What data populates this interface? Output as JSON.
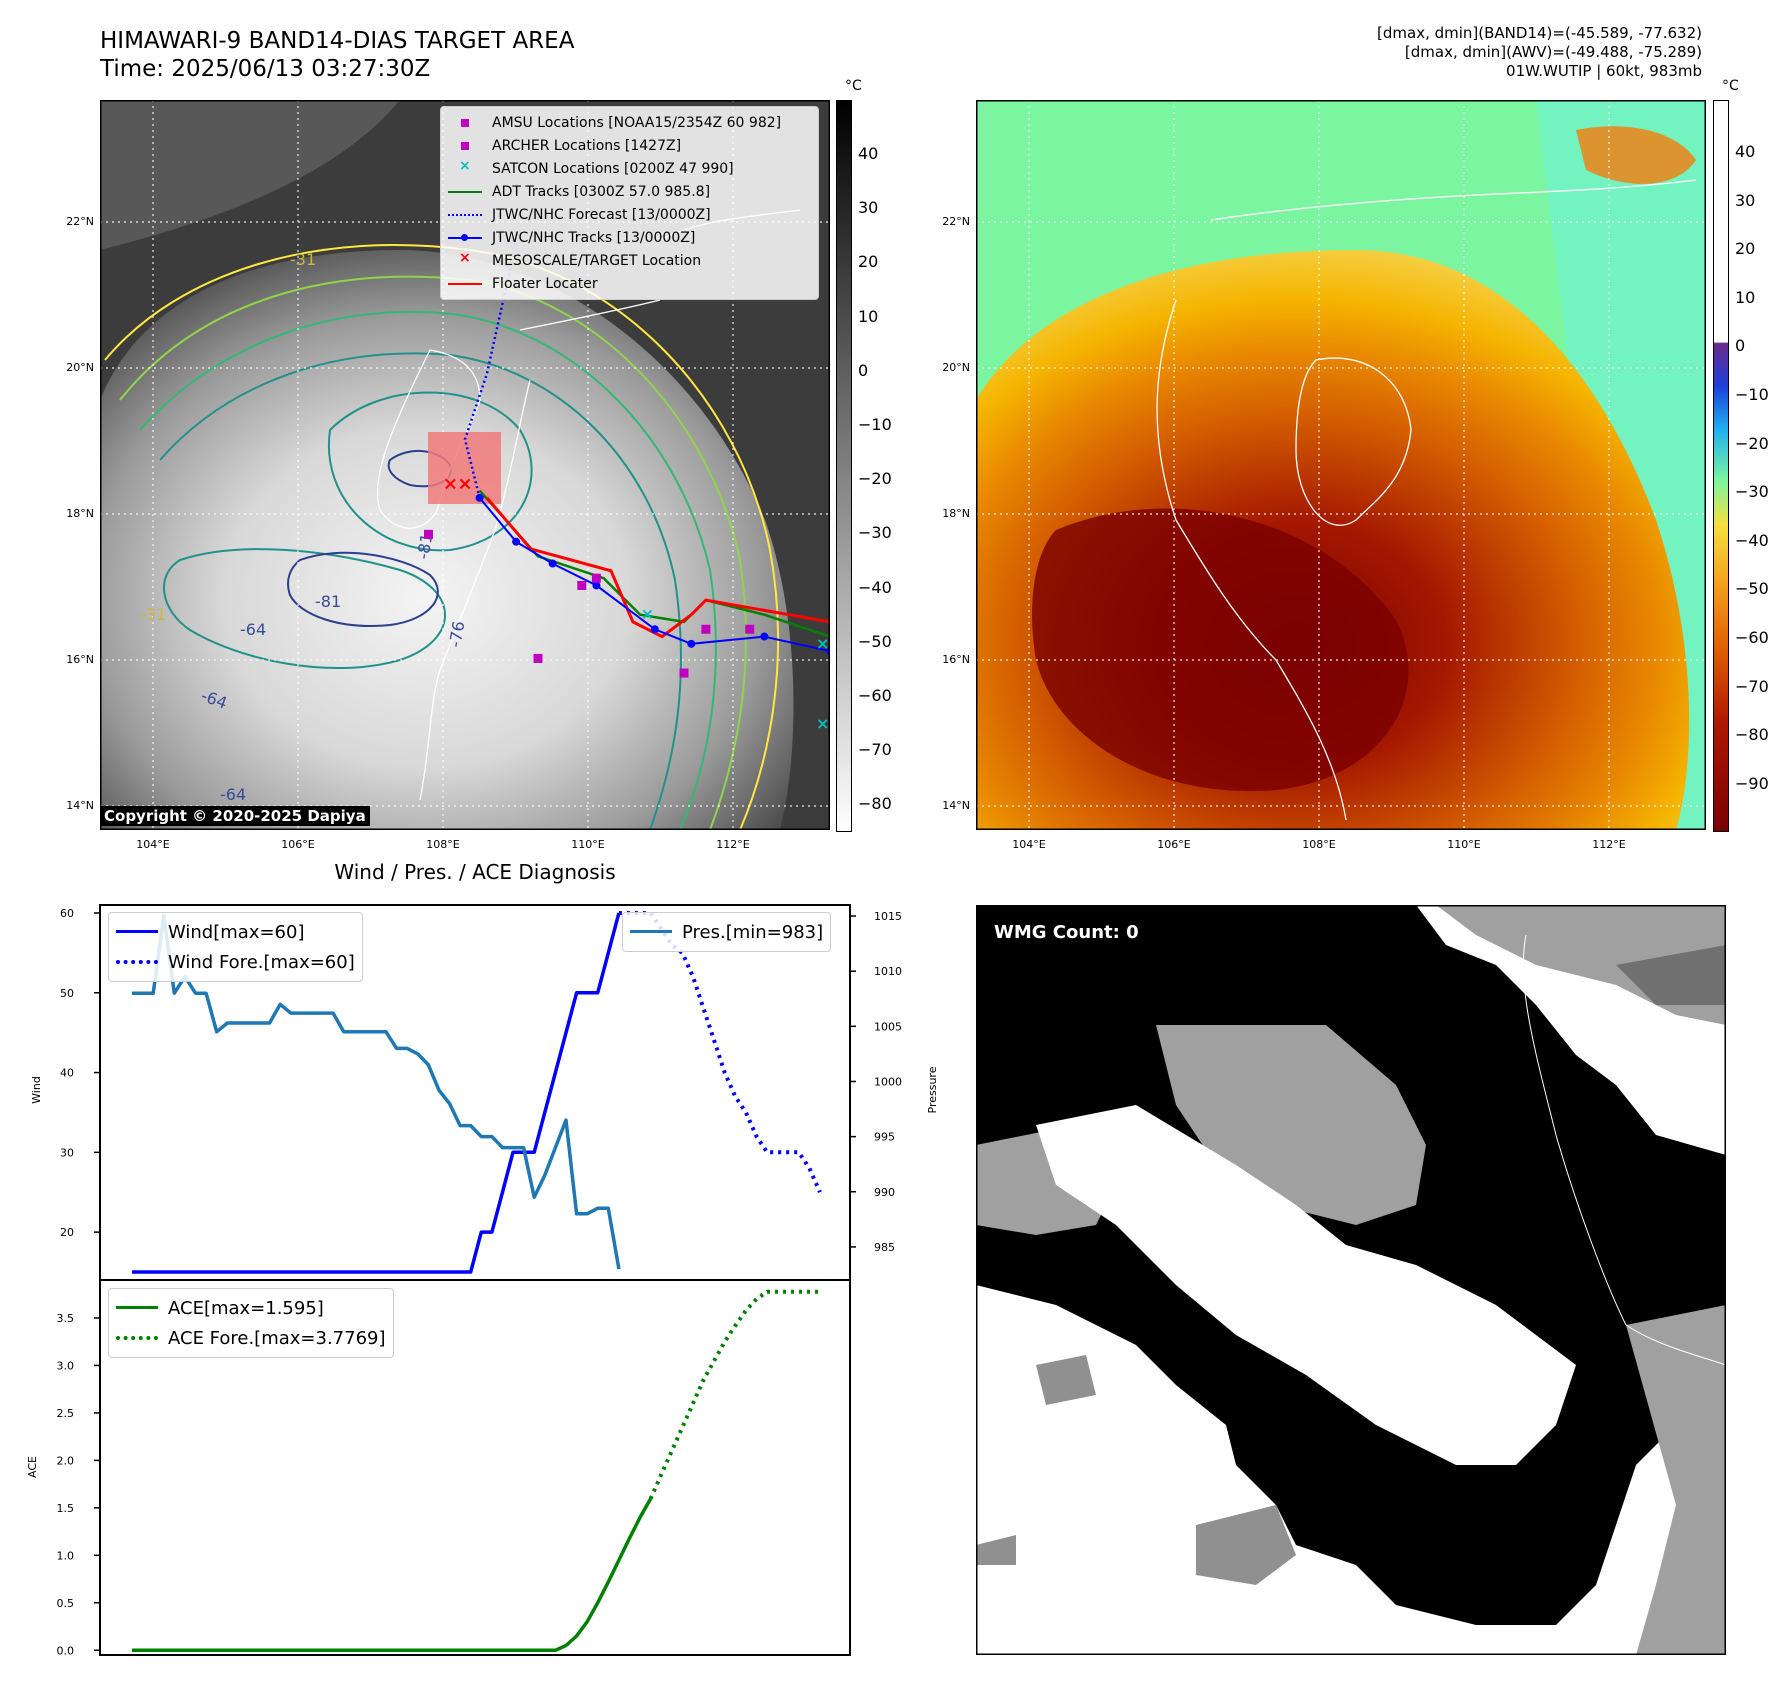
{
  "header": {
    "title_line1": "HIMAWARI-9 BAND14-DIAS TARGET AREA",
    "title_line2": "Time: 2025/06/13 03:27:30Z",
    "info_line1": "[dmax, dmin](BAND14)=(-45.589, -77.632)",
    "info_line2": "[dmax, dmin](AWV)=(-49.488, -75.289)",
    "info_line3": "01W.WUTIP | 60kt, 983mb"
  },
  "map": {
    "lat_ticks": [
      "22°N",
      "20°N",
      "18°N",
      "16°N",
      "14°N"
    ],
    "lon_ticks": [
      "104°E",
      "106°E",
      "108°E",
      "110°E",
      "112°E"
    ],
    "copyright": "Copyright © 2020-2025 Dapiya",
    "contour_labels": [
      "-81",
      "-64",
      "-81",
      "-76",
      "-64",
      "-31",
      "-31",
      "-64"
    ],
    "legend": {
      "amsu": "AMSU Locations [NOAA15/2354Z 60 982]",
      "archer": "ARCHER Locations [1427Z]",
      "satcon": "SATCON Locations [0200Z 47 990]",
      "adt": "ADT Tracks [0300Z 57.0 985.8]",
      "forecast": "JTWC/NHC Forecast [13/0000Z]",
      "tracks": "JTWC/NHC Tracks [13/0000Z]",
      "target": "MESOSCALE/TARGET Location",
      "floater": "Floater Locater"
    },
    "colors": {
      "amsu": "#bf00bf",
      "archer": "#c000c0",
      "satcon": "#00bfbf",
      "adt": "#008000",
      "forecast": "#0000ff",
      "tracks": "#0000ff",
      "target": "#ff0000",
      "floater": "#ff0000"
    },
    "tracks_points": [
      [
        18.3,
        108.5
      ],
      [
        17.7,
        109.0
      ],
      [
        17.4,
        109.5
      ],
      [
        17.1,
        110.1
      ],
      [
        16.5,
        110.9
      ],
      [
        16.3,
        111.4
      ],
      [
        16.4,
        112.4
      ],
      [
        16.2,
        113.3
      ]
    ],
    "forecast_points": [
      [
        18.3,
        108.5
      ],
      [
        19.1,
        108.3
      ],
      [
        20.0,
        108.6
      ],
      [
        20.9,
        108.8
      ],
      [
        21.8,
        109.0
      ]
    ],
    "adt_points": [
      [
        18.4,
        108.5
      ],
      [
        17.5,
        109.3
      ],
      [
        17.2,
        110.2
      ],
      [
        16.7,
        110.7
      ],
      [
        16.6,
        111.3
      ],
      [
        16.9,
        111.6
      ],
      [
        16.7,
        112.4
      ],
      [
        16.4,
        113.3
      ]
    ],
    "floater_points": [
      [
        18.3,
        108.6
      ],
      [
        17.6,
        109.2
      ],
      [
        17.3,
        110.3
      ],
      [
        16.6,
        110.6
      ],
      [
        16.4,
        111.0
      ],
      [
        16.7,
        111.4
      ],
      [
        16.9,
        111.6
      ],
      [
        16.6,
        113.3
      ]
    ],
    "amsu_points": [
      [
        17.8,
        107.8
      ],
      [
        17.2,
        110.1
      ],
      [
        16.1,
        109.3
      ],
      [
        16.5,
        111.6
      ],
      [
        16.5,
        112.2
      ],
      [
        15.9,
        111.3
      ],
      [
        17.1,
        109.9
      ]
    ],
    "target_points": [
      [
        18.5,
        108.1
      ],
      [
        18.5,
        108.3
      ]
    ],
    "satcon_points": [
      [
        16.7,
        110.8
      ],
      [
        16.3,
        113.2
      ],
      [
        15.2,
        113.2
      ]
    ]
  },
  "colorbar_left": {
    "unit": "°C",
    "ticks": [
      "40",
      "30",
      "20",
      "10",
      "0",
      "−10",
      "−20",
      "−30",
      "−40",
      "−50",
      "−60",
      "−70",
      "−80"
    ]
  },
  "colorbar_right": {
    "unit": "°C",
    "ticks": [
      "40",
      "30",
      "20",
      "10",
      "0",
      "−10",
      "−20",
      "−30",
      "−40",
      "−50",
      "−60",
      "−70",
      "−80",
      "−90"
    ]
  },
  "diag": {
    "title": "Wind / Pres. / ACE Diagnosis",
    "wind_ylabel": "Wind",
    "pres_ylabel": "Pressure",
    "ace_ylabel": "ACE",
    "wind_ticks": [
      "60",
      "50",
      "40",
      "30",
      "20"
    ],
    "pres_ticks": [
      "1015",
      "1010",
      "1005",
      "1000",
      "995",
      "990",
      "985"
    ],
    "ace_ticks": [
      "3.5",
      "3.0",
      "2.5",
      "2.0",
      "1.5",
      "1.0",
      "0.5",
      "0.0"
    ],
    "legend": {
      "wind": "Wind[max=60]",
      "wind_fore": "Wind Fore.[max=60]",
      "pres": "Pres.[min=983]",
      "ace": "ACE[max=1.595]",
      "ace_fore": "ACE Fore.[max=3.7769]"
    },
    "colors": {
      "wind": "#0000ff",
      "pres": "#1f77b4",
      "ace": "#008000"
    }
  },
  "wmg": {
    "label": "WMG Count: 0"
  },
  "chart_data": {
    "type": "line",
    "title": "Wind / Pres. / ACE Diagnosis",
    "series": [
      {
        "name": "Wind[max=60]",
        "axis": "Wind",
        "x": [
          0,
          1,
          2,
          3,
          4,
          5,
          6,
          7,
          8,
          9,
          10,
          11,
          12,
          13,
          14,
          15,
          16,
          17,
          18,
          19,
          20,
          21,
          22,
          23,
          24,
          25,
          26,
          27,
          28,
          29,
          30,
          31,
          32,
          33,
          34,
          35,
          36,
          37,
          38,
          39,
          40,
          41,
          42,
          43,
          44,
          45,
          46,
          47,
          48,
          49,
          50
        ],
        "values": [
          15,
          15,
          15,
          15,
          15,
          15,
          15,
          15,
          15,
          15,
          15,
          15,
          15,
          15,
          15,
          15,
          15,
          15,
          15,
          15,
          15,
          15,
          15,
          15,
          15,
          15,
          15,
          15,
          15,
          15,
          15,
          15,
          15,
          20,
          20,
          25,
          30,
          30,
          30,
          35,
          40,
          45,
          50,
          50,
          50,
          55,
          60,
          null,
          null,
          null,
          null
        ]
      },
      {
        "name": "Wind Fore.[max=60]",
        "axis": "Wind",
        "x": [
          46,
          47,
          48,
          49,
          50,
          51,
          52,
          53,
          54,
          55,
          56,
          57,
          58,
          59,
          60,
          61,
          62,
          63,
          64,
          65
        ],
        "values": [
          60,
          60,
          60,
          60,
          58,
          56,
          55,
          52,
          48,
          44,
          40,
          37,
          35,
          32,
          30,
          30,
          30,
          30,
          28,
          25
        ]
      },
      {
        "name": "Pres.[min=983]",
        "axis": "Pressure",
        "x": [
          0,
          1,
          2,
          3,
          4,
          5,
          6,
          7,
          8,
          9,
          10,
          11,
          12,
          13,
          14,
          15,
          16,
          17,
          18,
          19,
          20,
          21,
          22,
          23,
          24,
          25,
          26,
          27,
          28,
          29,
          30,
          31,
          32,
          33,
          34,
          35,
          36,
          37,
          38,
          39,
          40,
          41,
          42,
          43,
          44,
          45,
          46
        ],
        "values": [
          1008,
          1008,
          1008,
          1015,
          1008,
          1009.5,
          1008,
          1008,
          1004.5,
          1005.3,
          1005.3,
          1005.3,
          1005.3,
          1005.3,
          1007,
          1006.2,
          1006.2,
          1006.2,
          1006.2,
          1006.2,
          1004.5,
          1004.5,
          1004.5,
          1004.5,
          1004.5,
          1003,
          1003,
          1002.5,
          1001.5,
          999.2,
          998,
          996,
          996,
          995,
          995,
          994,
          994,
          994,
          989.5,
          991.5,
          994,
          996.5,
          988,
          988,
          988.5,
          988.5,
          983
        ]
      },
      {
        "name": "ACE[max=1.595]",
        "axis": "ACE",
        "x": [
          0,
          5,
          10,
          15,
          20,
          25,
          30,
          35,
          40,
          41,
          42,
          43,
          44,
          45,
          46,
          47,
          48,
          49
        ],
        "values": [
          0,
          0,
          0,
          0,
          0,
          0,
          0,
          0,
          0,
          0.05,
          0.15,
          0.3,
          0.5,
          0.72,
          0.95,
          1.18,
          1.4,
          1.595
        ]
      },
      {
        "name": "ACE Fore.[max=3.7769]",
        "axis": "ACE",
        "x": [
          49,
          50,
          51,
          52,
          53,
          54,
          55,
          56,
          57,
          58,
          59,
          60,
          61,
          62,
          63,
          64,
          65
        ],
        "values": [
          1.595,
          1.85,
          2.1,
          2.35,
          2.6,
          2.85,
          3.05,
          3.25,
          3.42,
          3.58,
          3.7,
          3.7769,
          3.7769,
          3.7769,
          3.7769,
          3.7769,
          3.7769
        ]
      }
    ],
    "ylim_wind": [
      14,
      61
    ],
    "ylim_pressure": [
      982,
      1016
    ],
    "ylim_ace": [
      0,
      3.9
    ],
    "grid": false,
    "legend_placement": "top-left / top-right"
  }
}
